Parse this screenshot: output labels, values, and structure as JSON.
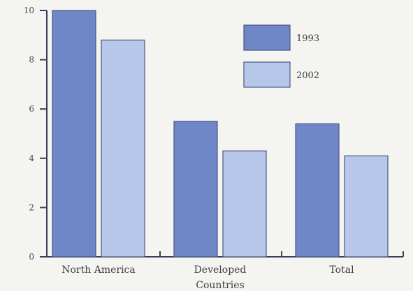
{
  "chart_data": {
    "type": "bar",
    "title": "",
    "xlabel": "",
    "ylabel": "",
    "ylim": [
      0,
      10
    ],
    "yticks": [
      0,
      2,
      4,
      6,
      8,
      10
    ],
    "ytick_labels": [
      "0",
      "2",
      "4",
      "6",
      "8",
      "10"
    ],
    "grid": false,
    "legend": "top-right",
    "categories": [
      [
        "North America"
      ],
      [
        "Developed",
        "Countries"
      ],
      [
        "Total"
      ]
    ],
    "series": [
      {
        "name": "1993",
        "color": "#6f86c7",
        "values": [
          10.0,
          5.5,
          5.4
        ]
      },
      {
        "name": "2002",
        "color": "#b7c7ea",
        "values": [
          8.8,
          4.3,
          4.1
        ]
      }
    ]
  }
}
